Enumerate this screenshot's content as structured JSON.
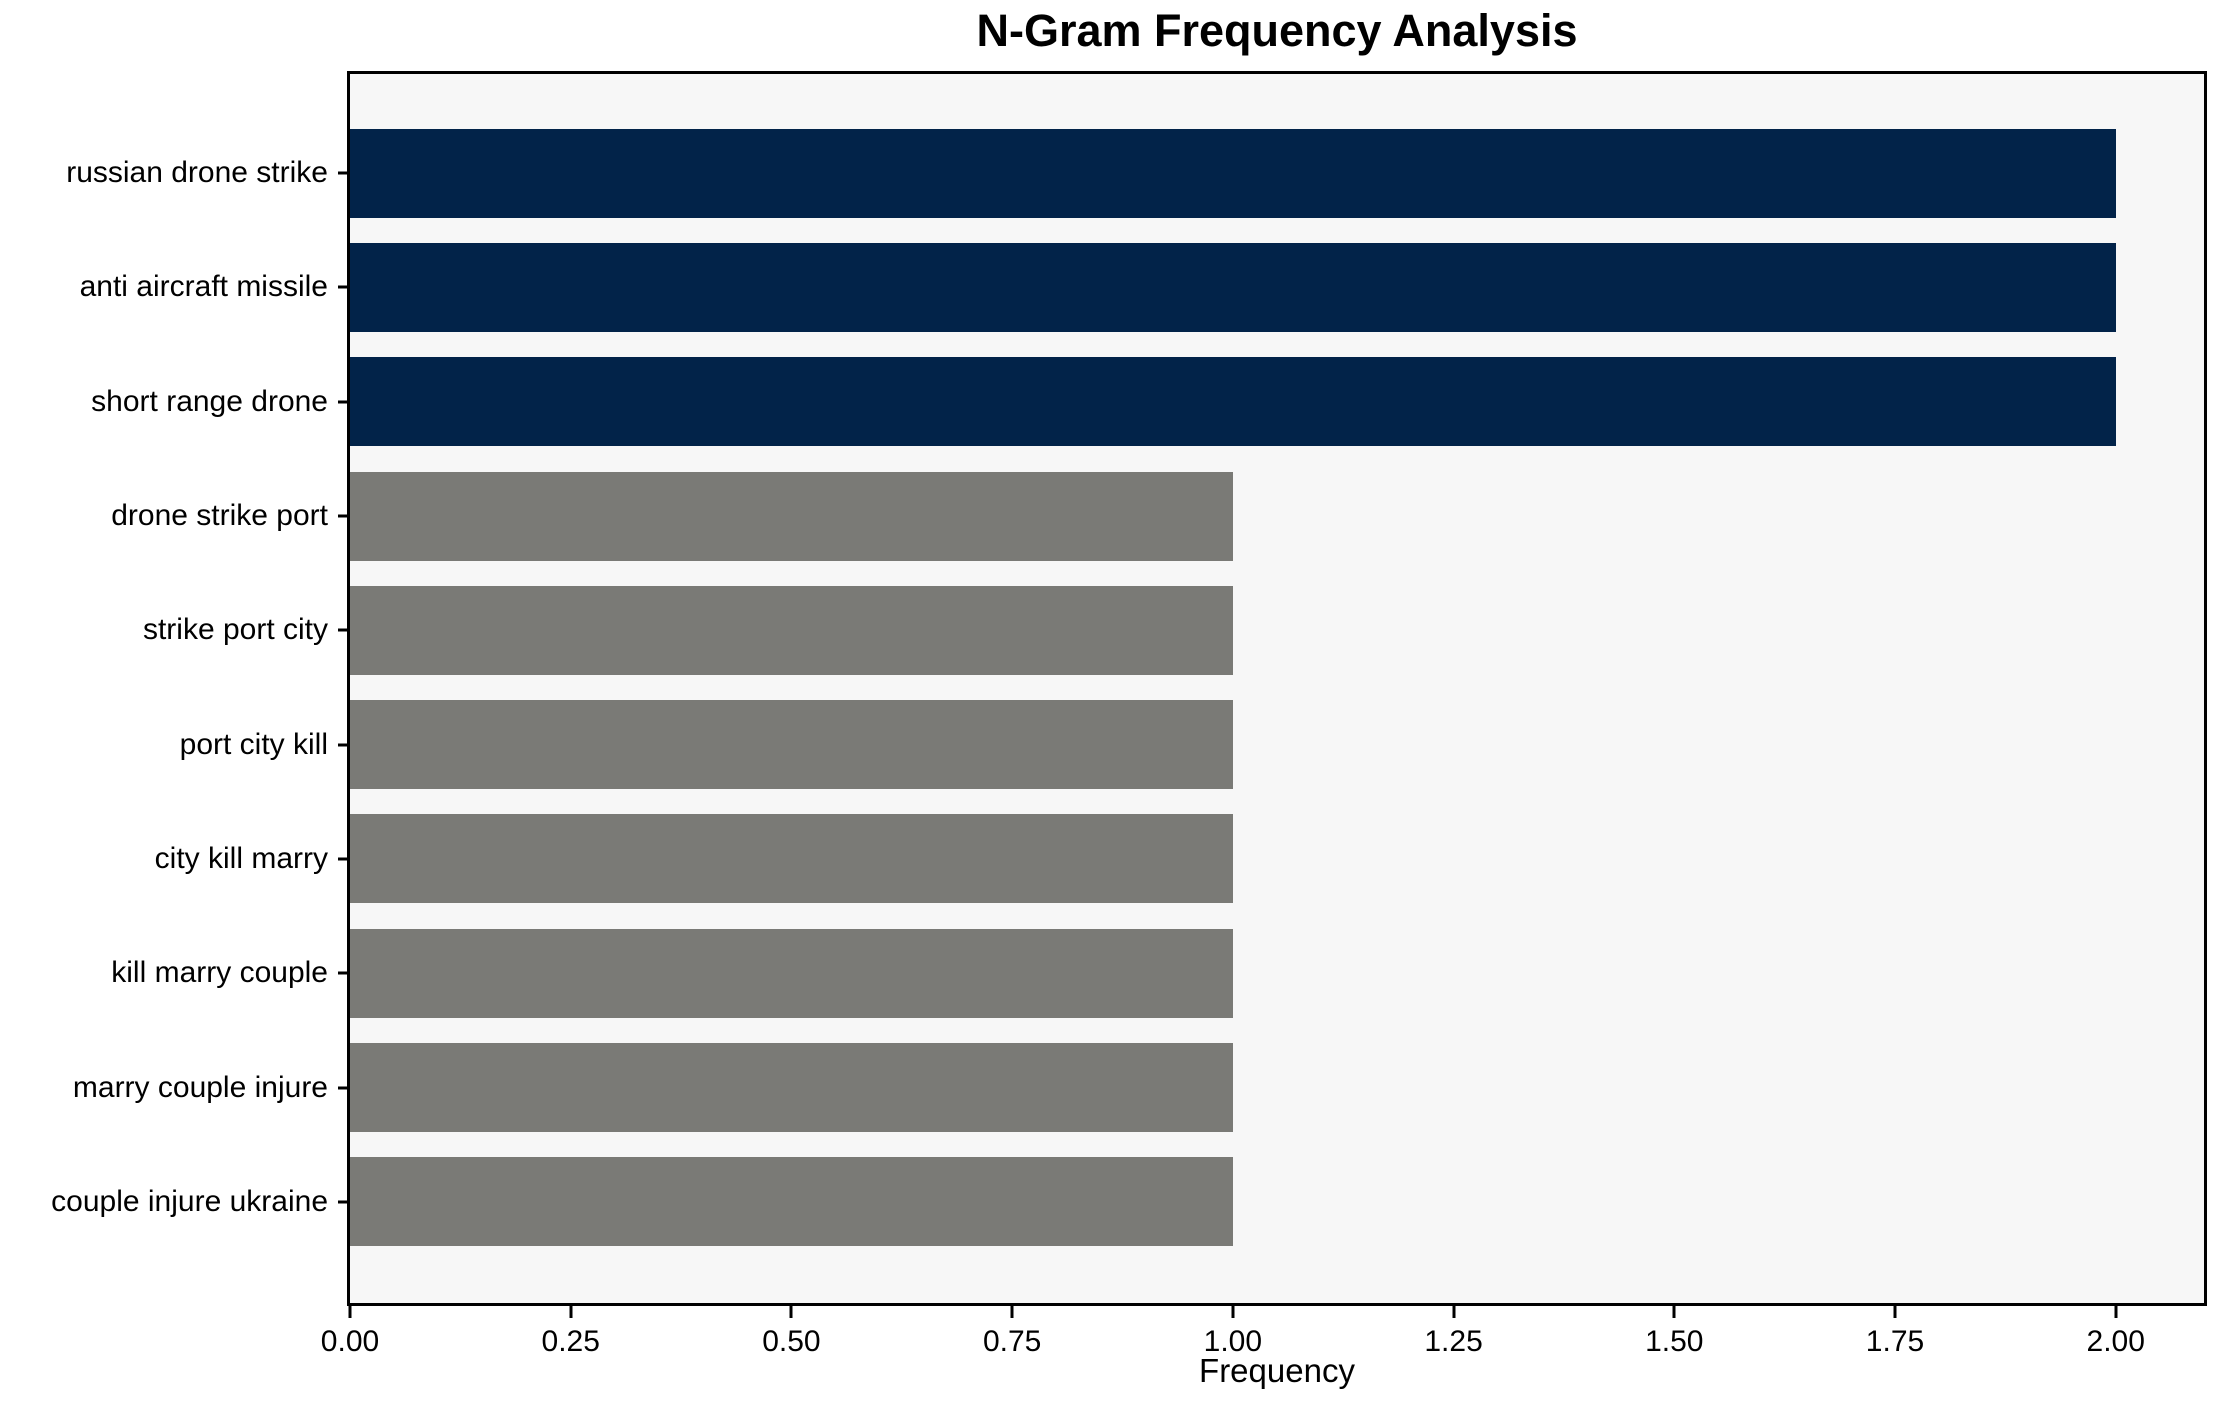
{
  "chart_data": {
    "type": "bar",
    "orientation": "horizontal",
    "title": "N-Gram Frequency Analysis",
    "xlabel": "Frequency",
    "ylabel": "",
    "categories": [
      "russian drone strike",
      "anti aircraft missile",
      "short range drone",
      "drone strike port",
      "strike port city",
      "port city kill",
      "city kill marry",
      "kill marry couple",
      "marry couple injure",
      "couple injure ukraine"
    ],
    "values": [
      2,
      2,
      2,
      1,
      1,
      1,
      1,
      1,
      1,
      1
    ],
    "bar_colors": [
      "#022349",
      "#022349",
      "#022349",
      "#7a7a76",
      "#7a7a76",
      "#7a7a76",
      "#7a7a76",
      "#7a7a76",
      "#7a7a76",
      "#7a7a76"
    ],
    "xlim": [
      0,
      2.1
    ],
    "xtick_values": [
      0,
      0.25,
      0.5,
      0.75,
      1.0,
      1.25,
      1.5,
      1.75,
      2.0
    ],
    "xtick_labels": [
      "0.00",
      "0.25",
      "0.50",
      "0.75",
      "1.00",
      "1.25",
      "1.50",
      "1.75",
      "2.00"
    ],
    "grid": false,
    "legend": "none"
  },
  "colors": {
    "highlight_bar": "#022349",
    "normal_bar": "#7a7a76",
    "plot_background": "#f7f7f7",
    "figure_background": "#ffffff",
    "spine": "#000000",
    "text": "#000000"
  }
}
